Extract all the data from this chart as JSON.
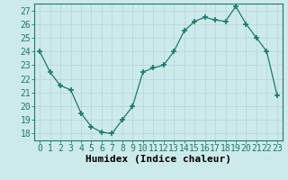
{
  "x": [
    0,
    1,
    2,
    3,
    4,
    5,
    6,
    7,
    8,
    9,
    10,
    11,
    12,
    13,
    14,
    15,
    16,
    17,
    18,
    19,
    20,
    21,
    22,
    23
  ],
  "y": [
    24,
    22.5,
    21.5,
    21.2,
    19.5,
    18.5,
    18.1,
    18.0,
    19.0,
    20.0,
    22.5,
    22.8,
    23.0,
    24.0,
    25.5,
    26.2,
    26.5,
    26.3,
    26.2,
    27.3,
    26.0,
    25.0,
    24.0,
    20.8
  ],
  "xlabel": "Humidex (Indice chaleur)",
  "ylim": [
    17.5,
    27.5
  ],
  "xlim": [
    -0.5,
    23.5
  ],
  "yticks": [
    18,
    19,
    20,
    21,
    22,
    23,
    24,
    25,
    26,
    27
  ],
  "xticks": [
    0,
    1,
    2,
    3,
    4,
    5,
    6,
    7,
    8,
    9,
    10,
    11,
    12,
    13,
    14,
    15,
    16,
    17,
    18,
    19,
    20,
    21,
    22,
    23
  ],
  "xtick_labels": [
    "0",
    "1",
    "2",
    "3",
    "4",
    "5",
    "6",
    "7",
    "8",
    "9",
    "10",
    "11",
    "12",
    "13",
    "14",
    "15",
    "16",
    "17",
    "18",
    "19",
    "20",
    "21",
    "22",
    "23"
  ],
  "line_color": "#1a7a6a",
  "marker": "+",
  "marker_size": 5,
  "bg_color": "#cdeaea",
  "grid_color": "#b8d8d8",
  "xlabel_fontsize": 8,
  "tick_fontsize": 7
}
